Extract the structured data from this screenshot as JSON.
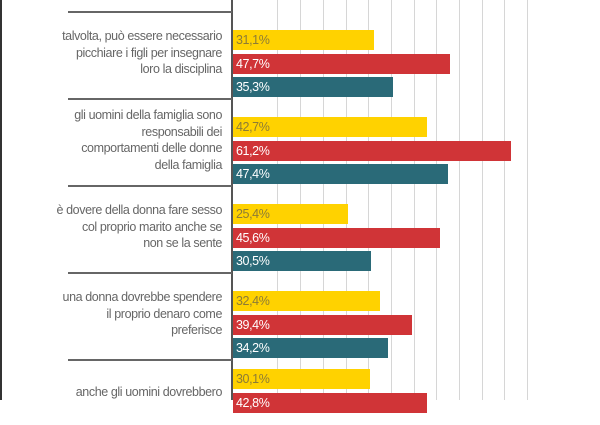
{
  "chart_data": {
    "type": "bar",
    "orientation": "horizontal",
    "title": "",
    "xlabel": "",
    "ylabel": "",
    "xlim": [
      0,
      65
    ],
    "grid": true,
    "categories": [
      "talvolta, può essere necessario picchiare i figli per insegnare loro la disciplina",
      "gli uomini della famiglia sono responsabili dei comportamenti delle donne della famiglia",
      "è dovere della donna fare sesso col proprio marito anche se non se la sente",
      "una donna dovrebbe spendere il proprio denaro come preferisce",
      "anche gli uomini dovrebbero"
    ],
    "category_lines": [
      [
        "talvolta, può essere necessario",
        "picchiare i figli per insegnare",
        "loro la disciplina"
      ],
      [
        "gli uomini della famiglia sono",
        "responsabili dei",
        "comportamenti delle donne",
        "della famiglia"
      ],
      [
        "è dovere della donna fare sesso",
        "col proprio marito anche se",
        "non se la sente"
      ],
      [
        "una donna dovrebbe spendere",
        "il proprio denaro come",
        "preferisce"
      ],
      [
        "anche gli uomini dovrebbero"
      ]
    ],
    "series": [
      {
        "color": "#FFD200",
        "text_color": "#8C7B36",
        "values": [
          31.1,
          42.7,
          25.4,
          32.4,
          30.1
        ],
        "labels": [
          "31,1%",
          "42,7%",
          "25,4%",
          "32,4%",
          "30,1%"
        ]
      },
      {
        "color": "#D03437",
        "text_color": "#FFFFFF",
        "values": [
          47.7,
          61.2,
          45.6,
          39.4,
          42.8
        ],
        "labels": [
          "47,7%",
          "61,2%",
          "45,6%",
          "39,4%",
          "42,8%"
        ]
      },
      {
        "color": "#2A6A78",
        "text_color": "#FFFFFF",
        "values": [
          35.3,
          47.4,
          30.5,
          34.2,
          null
        ],
        "labels": [
          "35,3%",
          "47,4%",
          "30,5%",
          "34,2%",
          null
        ]
      }
    ]
  }
}
